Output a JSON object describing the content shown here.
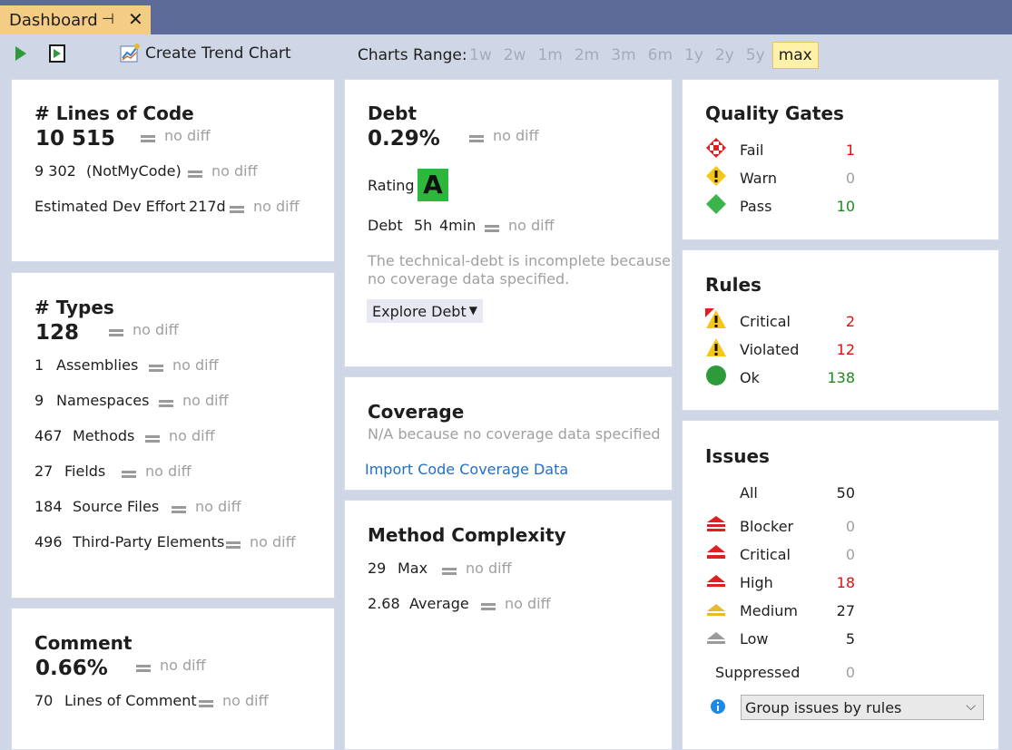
{
  "tab": {
    "title": "Dashboard"
  },
  "toolbar": {
    "create_trend": "Create Trend Chart",
    "charts_range_label": "Charts Range:",
    "range_options": [
      "1w",
      "2w",
      "1m",
      "2m",
      "3m",
      "6m",
      "1y",
      "2y",
      "5y",
      "max"
    ],
    "range_selected": "max"
  },
  "loc": {
    "title": "# Lines of Code",
    "value": "10 515",
    "diff": "no diff",
    "notmycode_value": "9 302",
    "notmycode_label": "(NotMyCode)",
    "notmycode_diff": "no diff",
    "effort_label": "Estimated Dev Effort",
    "effort_value": "217d",
    "effort_diff": "no diff"
  },
  "types": {
    "title": "# Types",
    "value": "128",
    "diff": "no diff",
    "rows": [
      {
        "value": "1",
        "label": "Assemblies",
        "diff": "no diff"
      },
      {
        "value": "9",
        "label": "Namespaces",
        "diff": "no diff"
      },
      {
        "value": "467",
        "label": "Methods",
        "diff": "no diff"
      },
      {
        "value": "27",
        "label": "Fields",
        "diff": "no diff"
      },
      {
        "value": "184",
        "label": "Source Files",
        "diff": "no diff"
      },
      {
        "value": "496",
        "label": "Third-Party Elements",
        "diff": "no diff"
      }
    ]
  },
  "comment": {
    "title": "Comment",
    "value": "0.66%",
    "diff": "no diff",
    "lines_value": "70",
    "lines_label": "Lines of Comment",
    "lines_diff": "no diff"
  },
  "debt": {
    "title": "Debt",
    "value": "0.29%",
    "diff": "no diff",
    "rating_label": "Rating",
    "rating_grade": "A",
    "debt_label": "Debt",
    "debt_h": "5h",
    "debt_min": "4min",
    "debt_diff": "no diff",
    "note_line1": "The technical-debt is incomplete because",
    "note_line2": "no coverage data specified.",
    "explore": "Explore Debt"
  },
  "coverage": {
    "title": "Coverage",
    "note": "N/A because no coverage data specified",
    "import_link": "Import Code Coverage Data"
  },
  "complexity": {
    "title": "Method Complexity",
    "max_value": "29",
    "max_label": "Max",
    "max_diff": "no diff",
    "avg_value": "2.68",
    "avg_label": "Average",
    "avg_diff": "no diff"
  },
  "quality_gates": {
    "title": "Quality Gates",
    "fail_label": "Fail",
    "fail_value": "1",
    "warn_label": "Warn",
    "warn_value": "0",
    "pass_label": "Pass",
    "pass_value": "10"
  },
  "rules": {
    "title": "Rules",
    "critical_label": "Critical",
    "critical_value": "2",
    "violated_label": "Violated",
    "violated_value": "12",
    "ok_label": "Ok",
    "ok_value": "138"
  },
  "issues": {
    "title": "Issues",
    "all_label": "All",
    "all_value": "50",
    "blocker_label": "Blocker",
    "blocker_value": "0",
    "critical_label": "Critical",
    "critical_value": "0",
    "high_label": "High",
    "high_value": "18",
    "medium_label": "Medium",
    "medium_value": "27",
    "low_label": "Low",
    "low_value": "5",
    "suppressed_label": "Suppressed",
    "suppressed_value": "0",
    "group_by": "Group issues by rules"
  },
  "colors": {
    "titlebar": "#5d6b99",
    "tab_active": "#f5cc84",
    "grade_a": "#2db83d",
    "bad": "#e01010",
    "good": "#1e8a1e",
    "link": "#1e6fc8"
  }
}
